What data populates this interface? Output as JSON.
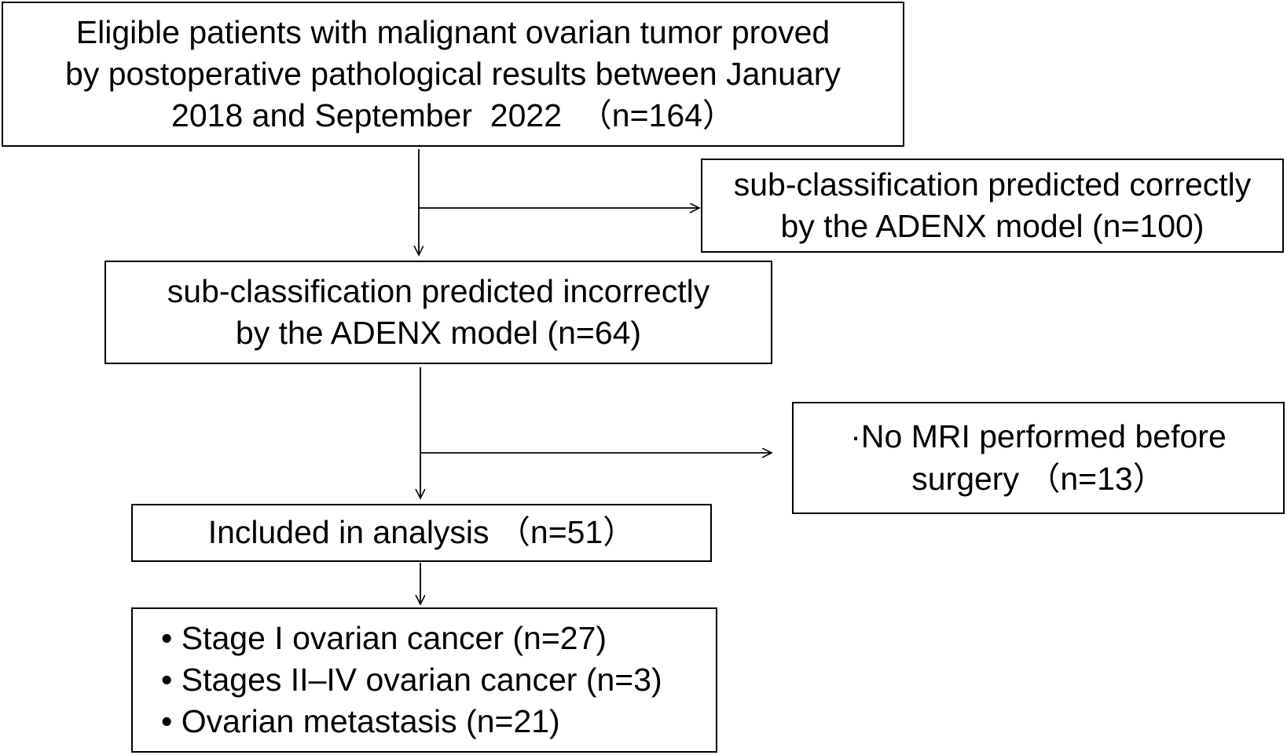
{
  "diagram": {
    "nodes": {
      "eligible": {
        "lines": [
          "Eligible patients with malignant ovarian tumor proved",
          "by postoperative pathological results between January",
          "2018 and September  2022  （n=164）"
        ]
      },
      "correct": {
        "lines": [
          "sub-classification predicted correctly",
          "by the ADENX model (n=100)"
        ]
      },
      "incorrect": {
        "lines": [
          "sub-classification predicted incorrectly",
          "by the ADENX model (n=64)"
        ]
      },
      "no_mri": {
        "lines": [
          "·No MRI performed before",
          "surgery （n=13）"
        ]
      },
      "included": {
        "lines": [
          "Included in analysis （n=51）"
        ]
      },
      "breakdown": {
        "bullet": "•",
        "lines": [
          "Stage I ovarian cancer (n=27)",
          "Stages II–IV ovarian cancer (n=3)",
          "Ovarian metastasis (n=21)"
        ]
      }
    },
    "edges": [
      {
        "from": "eligible",
        "to": "incorrect",
        "type": "main-flow"
      },
      {
        "from": "eligible",
        "to": "correct",
        "type": "exclusion"
      },
      {
        "from": "incorrect",
        "to": "included",
        "type": "main-flow"
      },
      {
        "from": "incorrect",
        "to": "no_mri",
        "type": "exclusion"
      },
      {
        "from": "included",
        "to": "breakdown",
        "type": "main-flow"
      }
    ],
    "colors": {
      "line": "#000000",
      "box_border": "#000000",
      "background": "#ffffff",
      "text": "#000000"
    }
  }
}
